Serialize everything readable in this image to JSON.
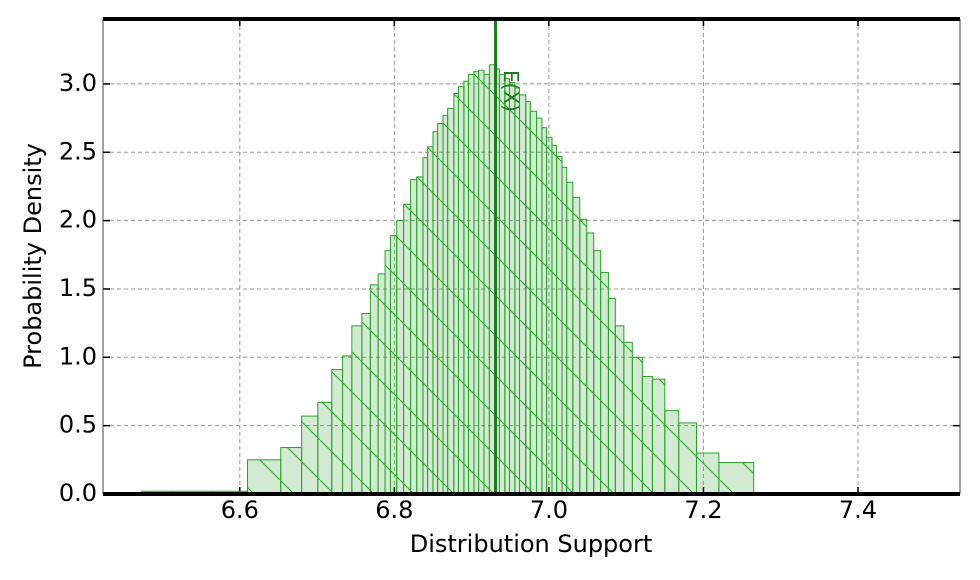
{
  "chart_data": {
    "type": "histogram",
    "xlabel": "Distribution Support",
    "ylabel": "Probability Density",
    "color": "#2ca02c",
    "hatch": true,
    "grid": true,
    "xlim": [
      6.423,
      7.532
    ],
    "ylim": [
      0,
      3.475
    ],
    "xticks": [
      6.6,
      6.8,
      {
        "value": 7,
        "label": "7.0"
      },
      7.2,
      7.4
    ],
    "yticks": [
      {
        "value": 0,
        "label": "0.0"
      },
      0.5,
      {
        "value": 1,
        "label": "1.0"
      },
      1.5,
      {
        "value": 2,
        "label": "2.0"
      },
      2.5,
      {
        "value": 3,
        "label": "3.0"
      }
    ],
    "bins": [
      6.473,
      6.61,
      6.653,
      6.68,
      6.701,
      6.719,
      6.733,
      6.745,
      6.758,
      6.769,
      6.779,
      6.788,
      6.795,
      6.803,
      6.812,
      6.821,
      6.829,
      6.837,
      6.843,
      6.85,
      6.856,
      6.863,
      6.869,
      6.877,
      6.883,
      6.89,
      6.896,
      6.903,
      6.909,
      6.916,
      6.923,
      6.93,
      6.936,
      6.943,
      6.949,
      6.956,
      6.962,
      6.97,
      6.976,
      6.984,
      6.991,
      6.997,
      7.004,
      7.01,
      7.017,
      7.023,
      7.031,
      7.04,
      7.049,
      7.058,
      7.067,
      7.077,
      7.086,
      7.097,
      7.108,
      7.121,
      7.134,
      7.15,
      7.168,
      7.191,
      7.22,
      7.265
    ],
    "values": [
      0.02,
      0.25,
      0.34,
      0.57,
      0.67,
      0.91,
      1.01,
      1.23,
      1.32,
      1.53,
      1.61,
      1.78,
      1.89,
      2.0,
      2.12,
      2.3,
      2.32,
      2.46,
      2.54,
      2.65,
      2.71,
      2.77,
      2.82,
      2.93,
      2.98,
      3.02,
      3.07,
      3.09,
      3.1,
      3.07,
      3.14,
      3.11,
      3.07,
      3.04,
      3.01,
      2.97,
      2.92,
      2.87,
      2.8,
      2.75,
      2.68,
      2.61,
      2.55,
      2.47,
      2.39,
      2.28,
      2.17,
      2.01,
      1.91,
      1.78,
      1.62,
      1.43,
      1.23,
      1.11,
      1.0,
      0.86,
      0.84,
      0.61,
      0.52,
      0.3,
      0.23
    ],
    "vline": {
      "x": 6.931,
      "label": "E(X)",
      "color": "#1f7a1f"
    }
  }
}
